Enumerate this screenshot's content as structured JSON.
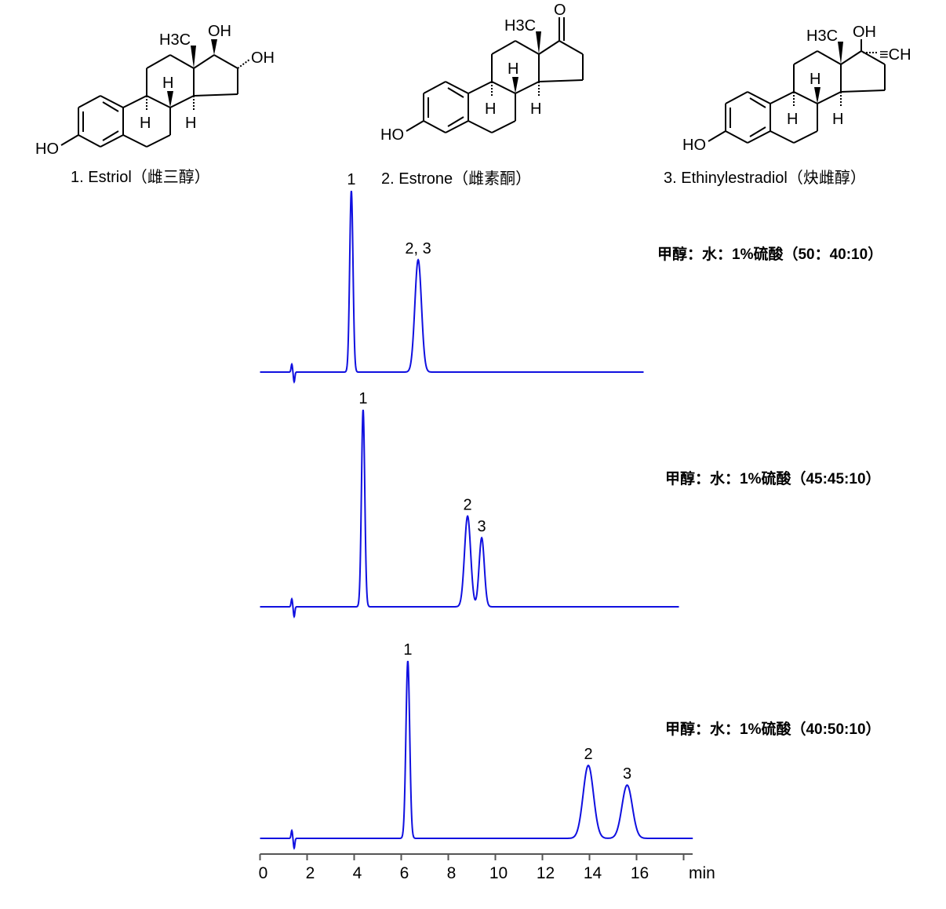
{
  "compounds": [
    {
      "label": "1. Estriol（雌三醇）",
      "atoms": {
        "methyl": "H3C",
        "oh17": "OH",
        "oh16": "OH",
        "ho3": "HO",
        "h": "H"
      }
    },
    {
      "label": "2. Estrone（雌素酮）",
      "atoms": {
        "methyl": "H3C",
        "ketone": "O",
        "ho3": "HO",
        "h": "H"
      }
    },
    {
      "label": "3. Ethinylestradiol（炔雌醇）",
      "atoms": {
        "methyl": "H3C",
        "oh17": "OH",
        "ethynyl": "≡CH",
        "ho3": "HO",
        "h": "H"
      }
    }
  ],
  "colors": {
    "trace": "#1010e0",
    "axis": "#555555"
  },
  "chart_data": {
    "type": "line",
    "xlabel": "min",
    "xlim": [
      0,
      18
    ],
    "xticks": [
      0,
      2,
      4,
      6,
      8,
      10,
      12,
      14,
      16
    ],
    "y_units": "relative intensity (% of tallest peak, no y-axis shown)",
    "chromatograms": [
      {
        "condition": "甲醇：水：1%硫酸（50：40:10）",
        "x_end": 16.3,
        "peaks": [
          {
            "label": "1",
            "rt": 3.88,
            "height": 92,
            "sigma": 0.07
          },
          {
            "label": "2, 3",
            "rt": 6.72,
            "height": 57,
            "sigma": 0.14
          }
        ]
      },
      {
        "condition": "甲醇：水：1%硫酸（45:45:10）",
        "x_end": 17.8,
        "peaks": [
          {
            "label": "1",
            "rt": 4.38,
            "height": 100,
            "sigma": 0.07
          },
          {
            "label": "2",
            "rt": 8.82,
            "height": 46,
            "sigma": 0.13
          },
          {
            "label": "3",
            "rt": 9.42,
            "height": 35,
            "sigma": 0.11
          }
        ]
      },
      {
        "condition": "甲醇：水：1%硫酸（40:50:10）",
        "x_end": 18.4,
        "peaks": [
          {
            "label": "1",
            "rt": 6.28,
            "height": 90,
            "sigma": 0.08
          },
          {
            "label": "2",
            "rt": 13.95,
            "height": 37,
            "sigma": 0.22
          },
          {
            "label": "3",
            "rt": 15.6,
            "height": 27,
            "sigma": 0.22
          }
        ]
      }
    ]
  }
}
